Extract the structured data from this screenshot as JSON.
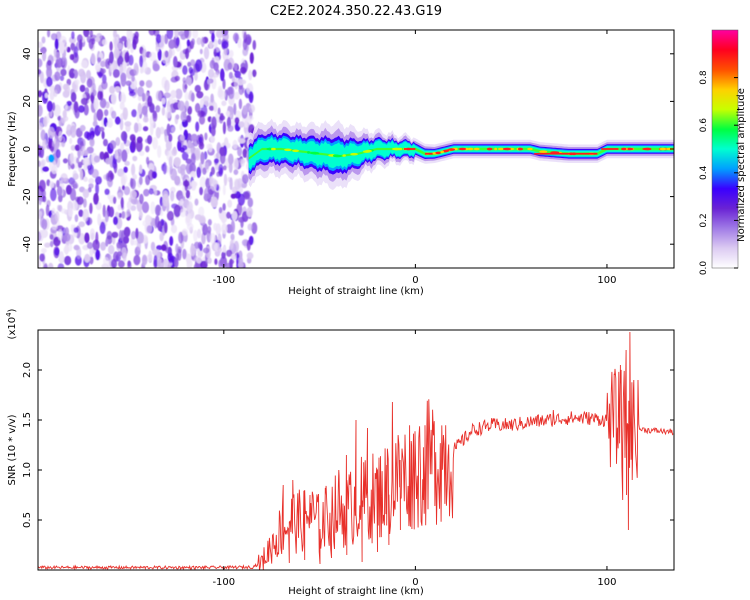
{
  "figure_title": "C2E2.2024.350.22.43.G19",
  "chart_data": [
    {
      "type": "heatmap",
      "title": "C2E2.2024.350.22.43.G19",
      "xlabel": "Height of straight line (km)",
      "ylabel": "Frequency (Hz)",
      "xlim": [
        -197,
        135
      ],
      "ylim": [
        -50,
        50
      ],
      "x_ticks": [
        -100,
        0,
        100
      ],
      "y_ticks": [
        -40,
        -20,
        0,
        20,
        40
      ],
      "x_tick_labels": [
        "-100",
        "0",
        "100"
      ],
      "y_tick_labels": [
        "-40",
        "-20",
        "0",
        "20",
        "40"
      ],
      "noise_region_x": [
        -197,
        -87
      ],
      "signal_band_center": [
        [
          -87,
          -4
        ],
        [
          -80,
          0
        ],
        [
          -70,
          0
        ],
        [
          -60,
          -1
        ],
        [
          -50,
          -2
        ],
        [
          -40,
          -3
        ],
        [
          -30,
          -2
        ],
        [
          -25,
          -1
        ],
        [
          -20,
          0
        ],
        [
          -10,
          0
        ],
        [
          -5,
          0
        ],
        [
          0,
          0
        ],
        [
          5,
          -2
        ],
        [
          10,
          -2
        ],
        [
          20,
          0
        ],
        [
          50,
          0
        ],
        [
          60,
          0
        ],
        [
          65,
          -1
        ],
        [
          80,
          -2
        ],
        [
          95,
          -2
        ],
        [
          100,
          0
        ],
        [
          110,
          0
        ],
        [
          120,
          0
        ],
        [
          135,
          0
        ]
      ],
      "signal_band_halfwidth_hz": [
        [
          -87,
          4
        ],
        [
          -60,
          4
        ],
        [
          -40,
          5
        ],
        [
          -25,
          3
        ],
        [
          -10,
          2
        ],
        [
          10,
          1.5
        ],
        [
          50,
          1.5
        ],
        [
          100,
          1.5
        ],
        [
          135,
          1.5
        ]
      ],
      "grid": false,
      "colorbar": {
        "label": "Normalized spectral amplitude",
        "range": [
          0,
          1
        ],
        "ticks": [
          0.0,
          0.2,
          0.4,
          0.6,
          0.8
        ],
        "tick_labels": [
          "0.0",
          "0.2",
          "0.4",
          "0.6",
          "0.8"
        ],
        "colormap": [
          "#ffffff",
          "#dccbf2",
          "#a07be6",
          "#6a23d4",
          "#3a00ff",
          "#00a0ff",
          "#00ffd0",
          "#00ff40",
          "#c8ff00",
          "#ffd000",
          "#ff5000",
          "#ff0020",
          "#ff00a0"
        ]
      }
    },
    {
      "type": "line",
      "xlabel": "Height of straight line (km)",
      "ylabel": "SNR (10 * v/v)",
      "y_exponent_label": "(x10",
      "y_exponent": "4",
      "y_exponent_close": ")",
      "xlim": [
        -197,
        135
      ],
      "ylim": [
        0,
        24000
      ],
      "x_ticks": [
        -100,
        0,
        100
      ],
      "y_ticks": [
        5000,
        10000,
        15000,
        20000
      ],
      "x_tick_labels": [
        "-100",
        "0",
        "100"
      ],
      "y_tick_labels": [
        "0.5",
        "1.0",
        "1.5",
        "2.0"
      ],
      "grid": false,
      "series": [
        {
          "color": "#e8302a",
          "points": [
            [
              -197,
              250
            ],
            [
              -150,
              250
            ],
            [
              -100,
              250
            ],
            [
              -85,
              300
            ],
            [
              -80,
              800
            ],
            [
              -75,
              2500
            ],
            [
              -70,
              4000
            ],
            [
              -65,
              5000
            ],
            [
              -60,
              4800
            ],
            [
              -55,
              5500
            ],
            [
              -50,
              4500
            ],
            [
              -45,
              5500
            ],
            [
              -40,
              6000
            ],
            [
              -35,
              6000
            ],
            [
              -30,
              7000
            ],
            [
              -25,
              7000
            ],
            [
              -20,
              7500
            ],
            [
              -15,
              8000
            ],
            [
              -10,
              9000
            ],
            [
              -5,
              9500
            ],
            [
              0,
              10000
            ],
            [
              5,
              10500
            ],
            [
              10,
              11000
            ],
            [
              15,
              11500
            ],
            [
              20,
              12000
            ],
            [
              25,
              13000
            ],
            [
              30,
              14000
            ],
            [
              40,
              14500
            ],
            [
              50,
              14500
            ],
            [
              60,
              14800
            ],
            [
              70,
              15000
            ],
            [
              80,
              15200
            ],
            [
              90,
              15200
            ],
            [
              100,
              15000
            ],
            [
              105,
              15200
            ],
            [
              110,
              15000
            ],
            [
              115,
              14200
            ],
            [
              120,
              14000
            ],
            [
              135,
              13800
            ]
          ],
          "spikes": [
            [
              -69,
              8500
            ],
            [
              -64,
              9000
            ],
            [
              -55,
              7500
            ],
            [
              -47,
              8200
            ],
            [
              -40,
              10000
            ],
            [
              -36,
              11500
            ],
            [
              -31,
              15000
            ],
            [
              -27,
              9500
            ],
            [
              -25,
              14200
            ],
            [
              -19,
              11000
            ],
            [
              -15,
              10500
            ],
            [
              -12,
              16800
            ],
            [
              -8,
              11000
            ],
            [
              -2,
              12500
            ],
            [
              5,
              11500
            ],
            [
              10,
              12500
            ],
            [
              72,
              16000
            ],
            [
              104,
              19500
            ],
            [
              107,
              20500
            ],
            [
              110,
              22000
            ],
            [
              112,
              23800
            ],
            [
              114,
              19000
            ]
          ],
          "dips": [
            [
              -66,
              700
            ],
            [
              -58,
              1000
            ],
            [
              -50,
              600
            ],
            [
              -44,
              1200
            ],
            [
              -36,
              1500
            ],
            [
              -28,
              800
            ],
            [
              -20,
              1800
            ],
            [
              -14,
              2500
            ],
            [
              -8,
              4000
            ],
            [
              -3,
              5000
            ],
            [
              4,
              7000
            ],
            [
              108,
              7000
            ],
            [
              110,
              7500
            ],
            [
              111,
              4000
            ],
            [
              113,
              9000
            ]
          ]
        }
      ]
    }
  ]
}
